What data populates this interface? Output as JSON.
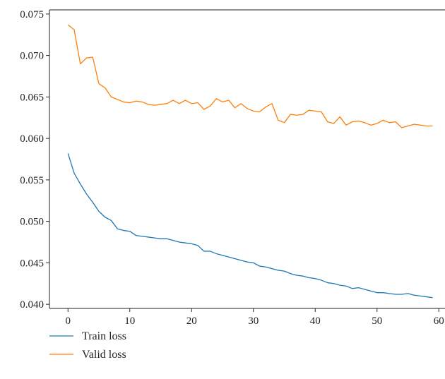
{
  "chart_data": {
    "type": "line",
    "xlim": [
      -3,
      61
    ],
    "ylim": [
      0.0395,
      0.0755
    ],
    "xticks": [
      0,
      10,
      20,
      30,
      40,
      50,
      60
    ],
    "xtick_labels": [
      "0",
      "10",
      "20",
      "30",
      "40",
      "50",
      "60"
    ],
    "yticks": [
      0.04,
      0.045,
      0.05,
      0.055,
      0.06,
      0.065,
      0.07,
      0.075
    ],
    "ytick_labels": [
      "0.040",
      "0.045",
      "0.050",
      "0.055",
      "0.060",
      "0.065",
      "0.070",
      "0.075"
    ],
    "grid": false,
    "legend_position": "bottom-left, below plot",
    "x": [
      0,
      1,
      2,
      3,
      4,
      5,
      6,
      7,
      8,
      9,
      10,
      11,
      12,
      13,
      14,
      15,
      16,
      17,
      18,
      19,
      20,
      21,
      22,
      23,
      24,
      25,
      26,
      27,
      28,
      29,
      30,
      31,
      32,
      33,
      34,
      35,
      36,
      37,
      38,
      39,
      40,
      41,
      42,
      43,
      44,
      45,
      46,
      47,
      48,
      49,
      50,
      51,
      52,
      53,
      54,
      55,
      56,
      57,
      58,
      59
    ],
    "series": [
      {
        "name": "Train loss",
        "color": "#1f77b4",
        "values": [
          0.0582,
          0.0558,
          0.0545,
          0.0533,
          0.0523,
          0.0512,
          0.0505,
          0.0501,
          0.0491,
          0.0489,
          0.0488,
          0.0483,
          0.0482,
          0.0481,
          0.048,
          0.0479,
          0.0479,
          0.0477,
          0.0475,
          0.0474,
          0.0473,
          0.0471,
          0.0464,
          0.0464,
          0.0461,
          0.0459,
          0.0457,
          0.0455,
          0.0453,
          0.0451,
          0.045,
          0.0446,
          0.0445,
          0.0443,
          0.0441,
          0.044,
          0.0437,
          0.0435,
          0.0434,
          0.0432,
          0.0431,
          0.0429,
          0.0426,
          0.0425,
          0.0423,
          0.0422,
          0.0419,
          0.042,
          0.0418,
          0.0416,
          0.0414,
          0.0414,
          0.0413,
          0.0412,
          0.0412,
          0.0413,
          0.0411,
          0.041,
          0.0409,
          0.0408
        ]
      },
      {
        "name": "Valid loss",
        "color": "#ff7f0e",
        "values": [
          0.0737,
          0.0731,
          0.069,
          0.0697,
          0.0698,
          0.0666,
          0.0661,
          0.065,
          0.0647,
          0.0644,
          0.0643,
          0.0645,
          0.0644,
          0.0641,
          0.064,
          0.0641,
          0.0642,
          0.0646,
          0.0642,
          0.0646,
          0.0642,
          0.0643,
          0.0635,
          0.0639,
          0.0648,
          0.0644,
          0.0646,
          0.0637,
          0.0642,
          0.0636,
          0.0633,
          0.0632,
          0.0638,
          0.0642,
          0.0622,
          0.0619,
          0.0629,
          0.0628,
          0.0629,
          0.0634,
          0.0633,
          0.0632,
          0.062,
          0.0618,
          0.0626,
          0.0616,
          0.062,
          0.0621,
          0.0619,
          0.0616,
          0.0618,
          0.0622,
          0.0619,
          0.062,
          0.0613,
          0.0615,
          0.0617,
          0.0616,
          0.0615,
          0.0615
        ]
      }
    ]
  }
}
